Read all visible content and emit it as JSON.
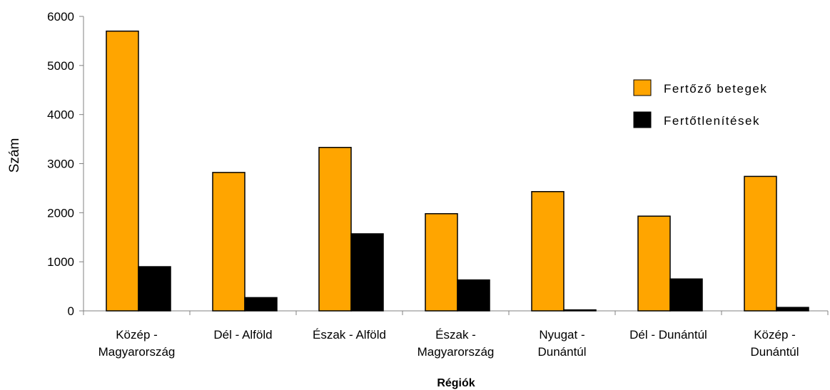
{
  "chart_data": {
    "type": "bar",
    "title": "",
    "xlabel": "Régiók",
    "ylabel": "Szám",
    "ylim": [
      0,
      6000
    ],
    "yticks": [
      "0",
      "1000",
      "2000",
      "3000",
      "4000",
      "5000",
      "6000"
    ],
    "categories": [
      [
        "Közép -",
        "Magyarország"
      ],
      [
        "Dél - Alföld"
      ],
      [
        "Észak - Alföld"
      ],
      [
        "Észak -",
        "Magyarország"
      ],
      [
        "Nyugat -",
        "Dunántúl"
      ],
      [
        "Dél - Dunántúl"
      ],
      [
        "Közép -",
        "Dunántúl"
      ]
    ],
    "series": [
      {
        "name": "Fertőző betegek",
        "color": "#FFA500",
        "values": [
          5700,
          2820,
          3330,
          1980,
          2430,
          1930,
          2740
        ]
      },
      {
        "name": "Fertőtlenítések",
        "color": "#000000",
        "values": [
          900,
          270,
          1570,
          630,
          20,
          650,
          70
        ]
      }
    ],
    "legend_position": "right",
    "grid": false
  }
}
